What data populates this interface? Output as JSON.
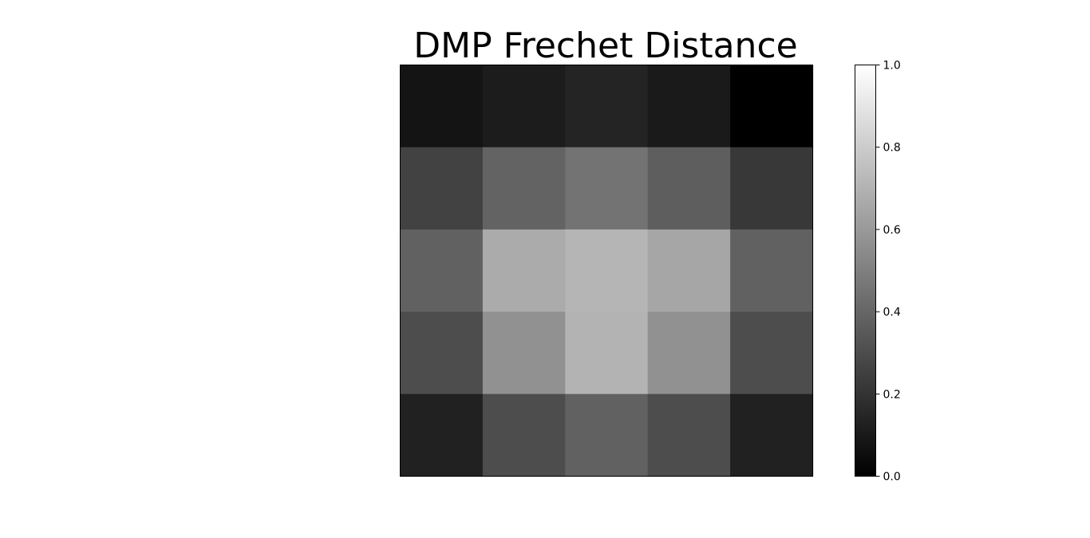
{
  "chart_data": {
    "type": "heatmap",
    "title": "DMP Frechet Distance",
    "xlabel": "",
    "ylabel": "",
    "colormap": "gray",
    "grid": false,
    "x_ticks_visible": false,
    "y_ticks_visible": false,
    "values": [
      [
        0.08,
        0.11,
        0.14,
        0.1,
        0.0
      ],
      [
        0.26,
        0.39,
        0.45,
        0.37,
        0.22
      ],
      [
        0.38,
        0.67,
        0.71,
        0.65,
        0.38
      ],
      [
        0.3,
        0.57,
        0.7,
        0.57,
        0.3
      ],
      [
        0.13,
        0.3,
        0.38,
        0.3,
        0.13
      ]
    ],
    "colorbar": {
      "range": [
        0.0,
        1.0
      ],
      "ticks": [
        0.0,
        0.2,
        0.4,
        0.6,
        0.8,
        1.0
      ],
      "tick_labels": [
        "0.0",
        "0.2",
        "0.4",
        "0.6",
        "0.8",
        "1.0"
      ]
    }
  }
}
